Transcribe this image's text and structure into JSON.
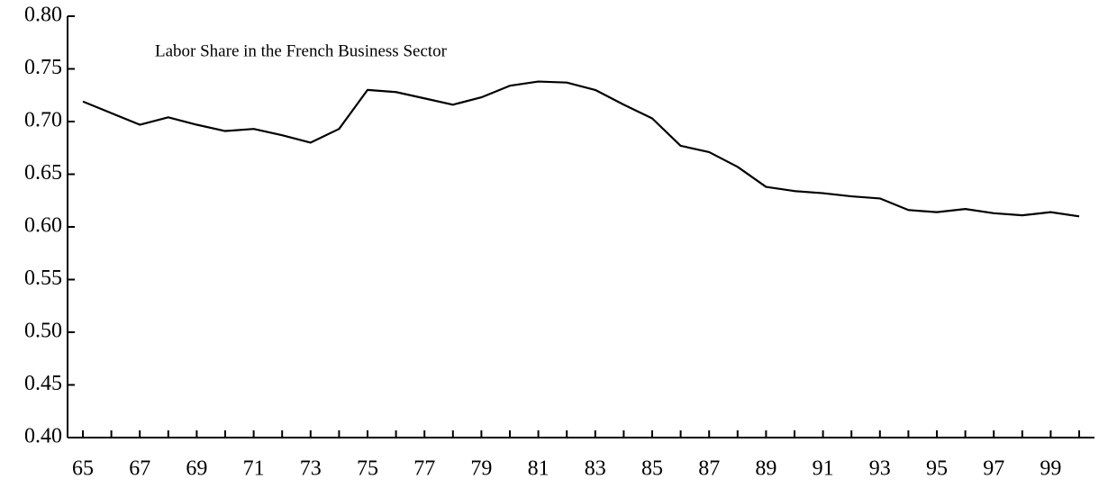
{
  "chart_data": {
    "type": "line",
    "title": "Labor Share in the French Business Sector",
    "categories": [
      "65",
      null,
      "67",
      null,
      "69",
      null,
      "71",
      null,
      "73",
      null,
      "75",
      null,
      "77",
      null,
      "79",
      null,
      "81",
      null,
      "83",
      null,
      "85",
      null,
      "87",
      null,
      "89",
      null,
      "91",
      null,
      "93",
      null,
      "95",
      null,
      "97",
      null,
      "99",
      null
    ],
    "series": [
      {
        "name": "Labor Share",
        "color": "#000000",
        "values": [
          0.719,
          0.708,
          0.697,
          0.704,
          0.697,
          0.691,
          0.693,
          0.687,
          0.68,
          0.693,
          0.73,
          0.728,
          0.722,
          0.716,
          0.723,
          0.734,
          0.738,
          0.737,
          0.73,
          0.716,
          0.703,
          0.677,
          0.671,
          0.657,
          0.638,
          0.634,
          0.632,
          0.629,
          0.627,
          0.616,
          0.614,
          0.617,
          0.613,
          0.611,
          0.614,
          0.61
        ]
      }
    ],
    "ylim": [
      0.4,
      0.8
    ],
    "yticks": [
      {
        "value": 0.4,
        "label": "0.40"
      },
      {
        "value": 0.45,
        "label": "0.45"
      },
      {
        "value": 0.5,
        "label": "0.50"
      },
      {
        "value": 0.55,
        "label": "0.55"
      },
      {
        "value": 0.6,
        "label": "0.60"
      },
      {
        "value": 0.65,
        "label": "0.65"
      },
      {
        "value": 0.7,
        "label": "0.70"
      },
      {
        "value": 0.75,
        "label": "0.75"
      },
      {
        "value": 0.8,
        "label": "0.80"
      }
    ],
    "grid": false
  }
}
